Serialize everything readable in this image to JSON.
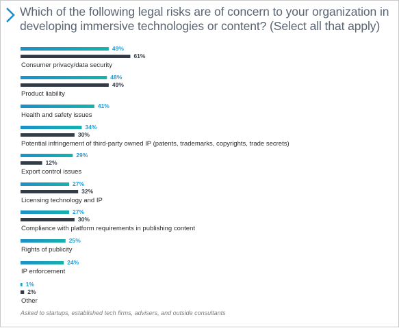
{
  "title": "Which of the following legal risks are of concern to your organization in developing immersive technologies or content? (Select all that apply)",
  "footnote": "Asked to startups, established tech firms, advisers, and outside consultants",
  "colors": {
    "series_teal": "#16b2ac",
    "series_blue": "#1e8fc9",
    "series_dark": "#333b47",
    "chevron": "#1e8fc9",
    "label_teal": "#1e9cd6",
    "label_dark": "#333b47"
  },
  "chart_data": {
    "type": "bar",
    "orientation": "horizontal",
    "value_format": "percent",
    "grid": false,
    "legend": "none",
    "categories": [
      "Consumer privacy/data security",
      "Product liability",
      "Health and safety issues",
      "Potential infringement of third-party owned IP (patents, trademarks, copyrights, trade secrets)",
      "Export control issues",
      "Licensing technology and IP",
      "Compliance with platform requirements in publishing content",
      "Rights of publicity",
      "IP enforcement",
      "Other"
    ],
    "series": [
      {
        "values": [
          49,
          48,
          41,
          34,
          29,
          27,
          27,
          25,
          24,
          1
        ],
        "style": "gradient-teal-blue"
      },
      {
        "values": [
          61,
          49,
          null,
          30,
          12,
          32,
          30,
          null,
          null,
          2
        ],
        "style": "dark"
      }
    ],
    "xlim": [
      0,
      100
    ]
  }
}
